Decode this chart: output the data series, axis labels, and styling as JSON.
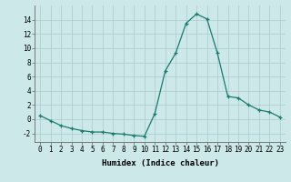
{
  "x": [
    0,
    1,
    2,
    3,
    4,
    5,
    6,
    7,
    8,
    9,
    10,
    11,
    12,
    13,
    14,
    15,
    16,
    17,
    18,
    19,
    20,
    21,
    22,
    23
  ],
  "y": [
    0.5,
    -0.2,
    -0.9,
    -1.3,
    -1.6,
    -1.8,
    -1.8,
    -2.0,
    -2.1,
    -2.3,
    -2.4,
    0.8,
    6.8,
    9.3,
    13.5,
    14.8,
    14.1,
    9.3,
    3.2,
    3.0,
    2.0,
    1.3,
    1.0,
    0.3
  ],
  "line_color": "#1a7a6e",
  "marker": "+",
  "marker_size": 3,
  "bg_color": "#cce8e8",
  "grid_color": "#aacccc",
  "xlabel": "Humidex (Indice chaleur)",
  "xlim": [
    -0.5,
    23.5
  ],
  "ylim": [
    -3.2,
    16.0
  ],
  "yticks": [
    -2,
    0,
    2,
    4,
    6,
    8,
    10,
    12,
    14
  ],
  "xticks": [
    0,
    1,
    2,
    3,
    4,
    5,
    6,
    7,
    8,
    9,
    10,
    11,
    12,
    13,
    14,
    15,
    16,
    17,
    18,
    19,
    20,
    21,
    22,
    23
  ],
  "tick_fontsize": 5.5,
  "xlabel_fontsize": 6.5
}
